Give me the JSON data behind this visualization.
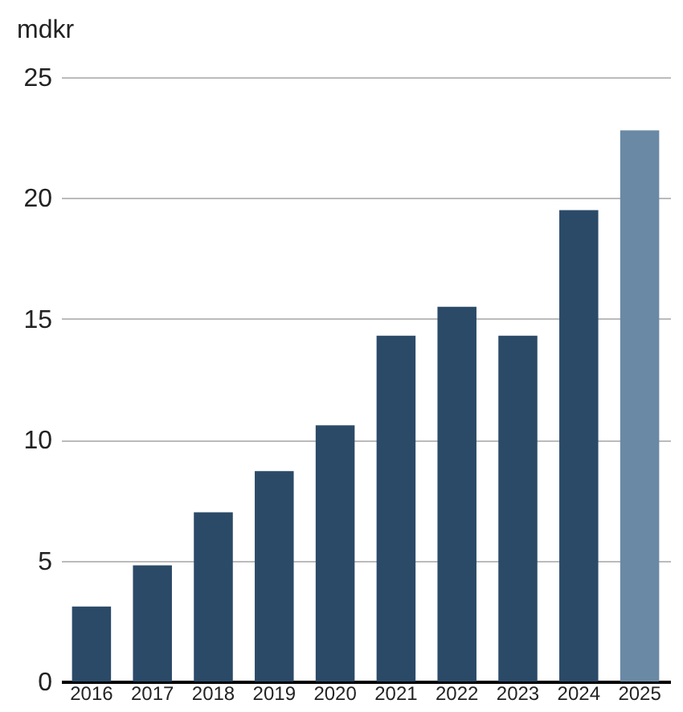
{
  "chart_data": {
    "type": "bar",
    "ylabel": "mdkr",
    "categories": [
      "2016",
      "2017",
      "2018",
      "2019",
      "2020",
      "2021",
      "2022",
      "2023",
      "2024",
      "2025"
    ],
    "values": [
      3.1,
      4.8,
      7.0,
      8.7,
      10.6,
      14.3,
      15.5,
      14.3,
      19.5,
      22.8
    ],
    "colors": [
      "#2b4a68",
      "#2b4a68",
      "#2b4a68",
      "#2b4a68",
      "#2b4a68",
      "#2b4a68",
      "#2b4a68",
      "#2b4a68",
      "#2b4a68",
      "#6a89a4"
    ],
    "ylim": [
      0,
      25
    ],
    "yticks": [
      0,
      5,
      10,
      15,
      20,
      25
    ],
    "grid": "y"
  }
}
